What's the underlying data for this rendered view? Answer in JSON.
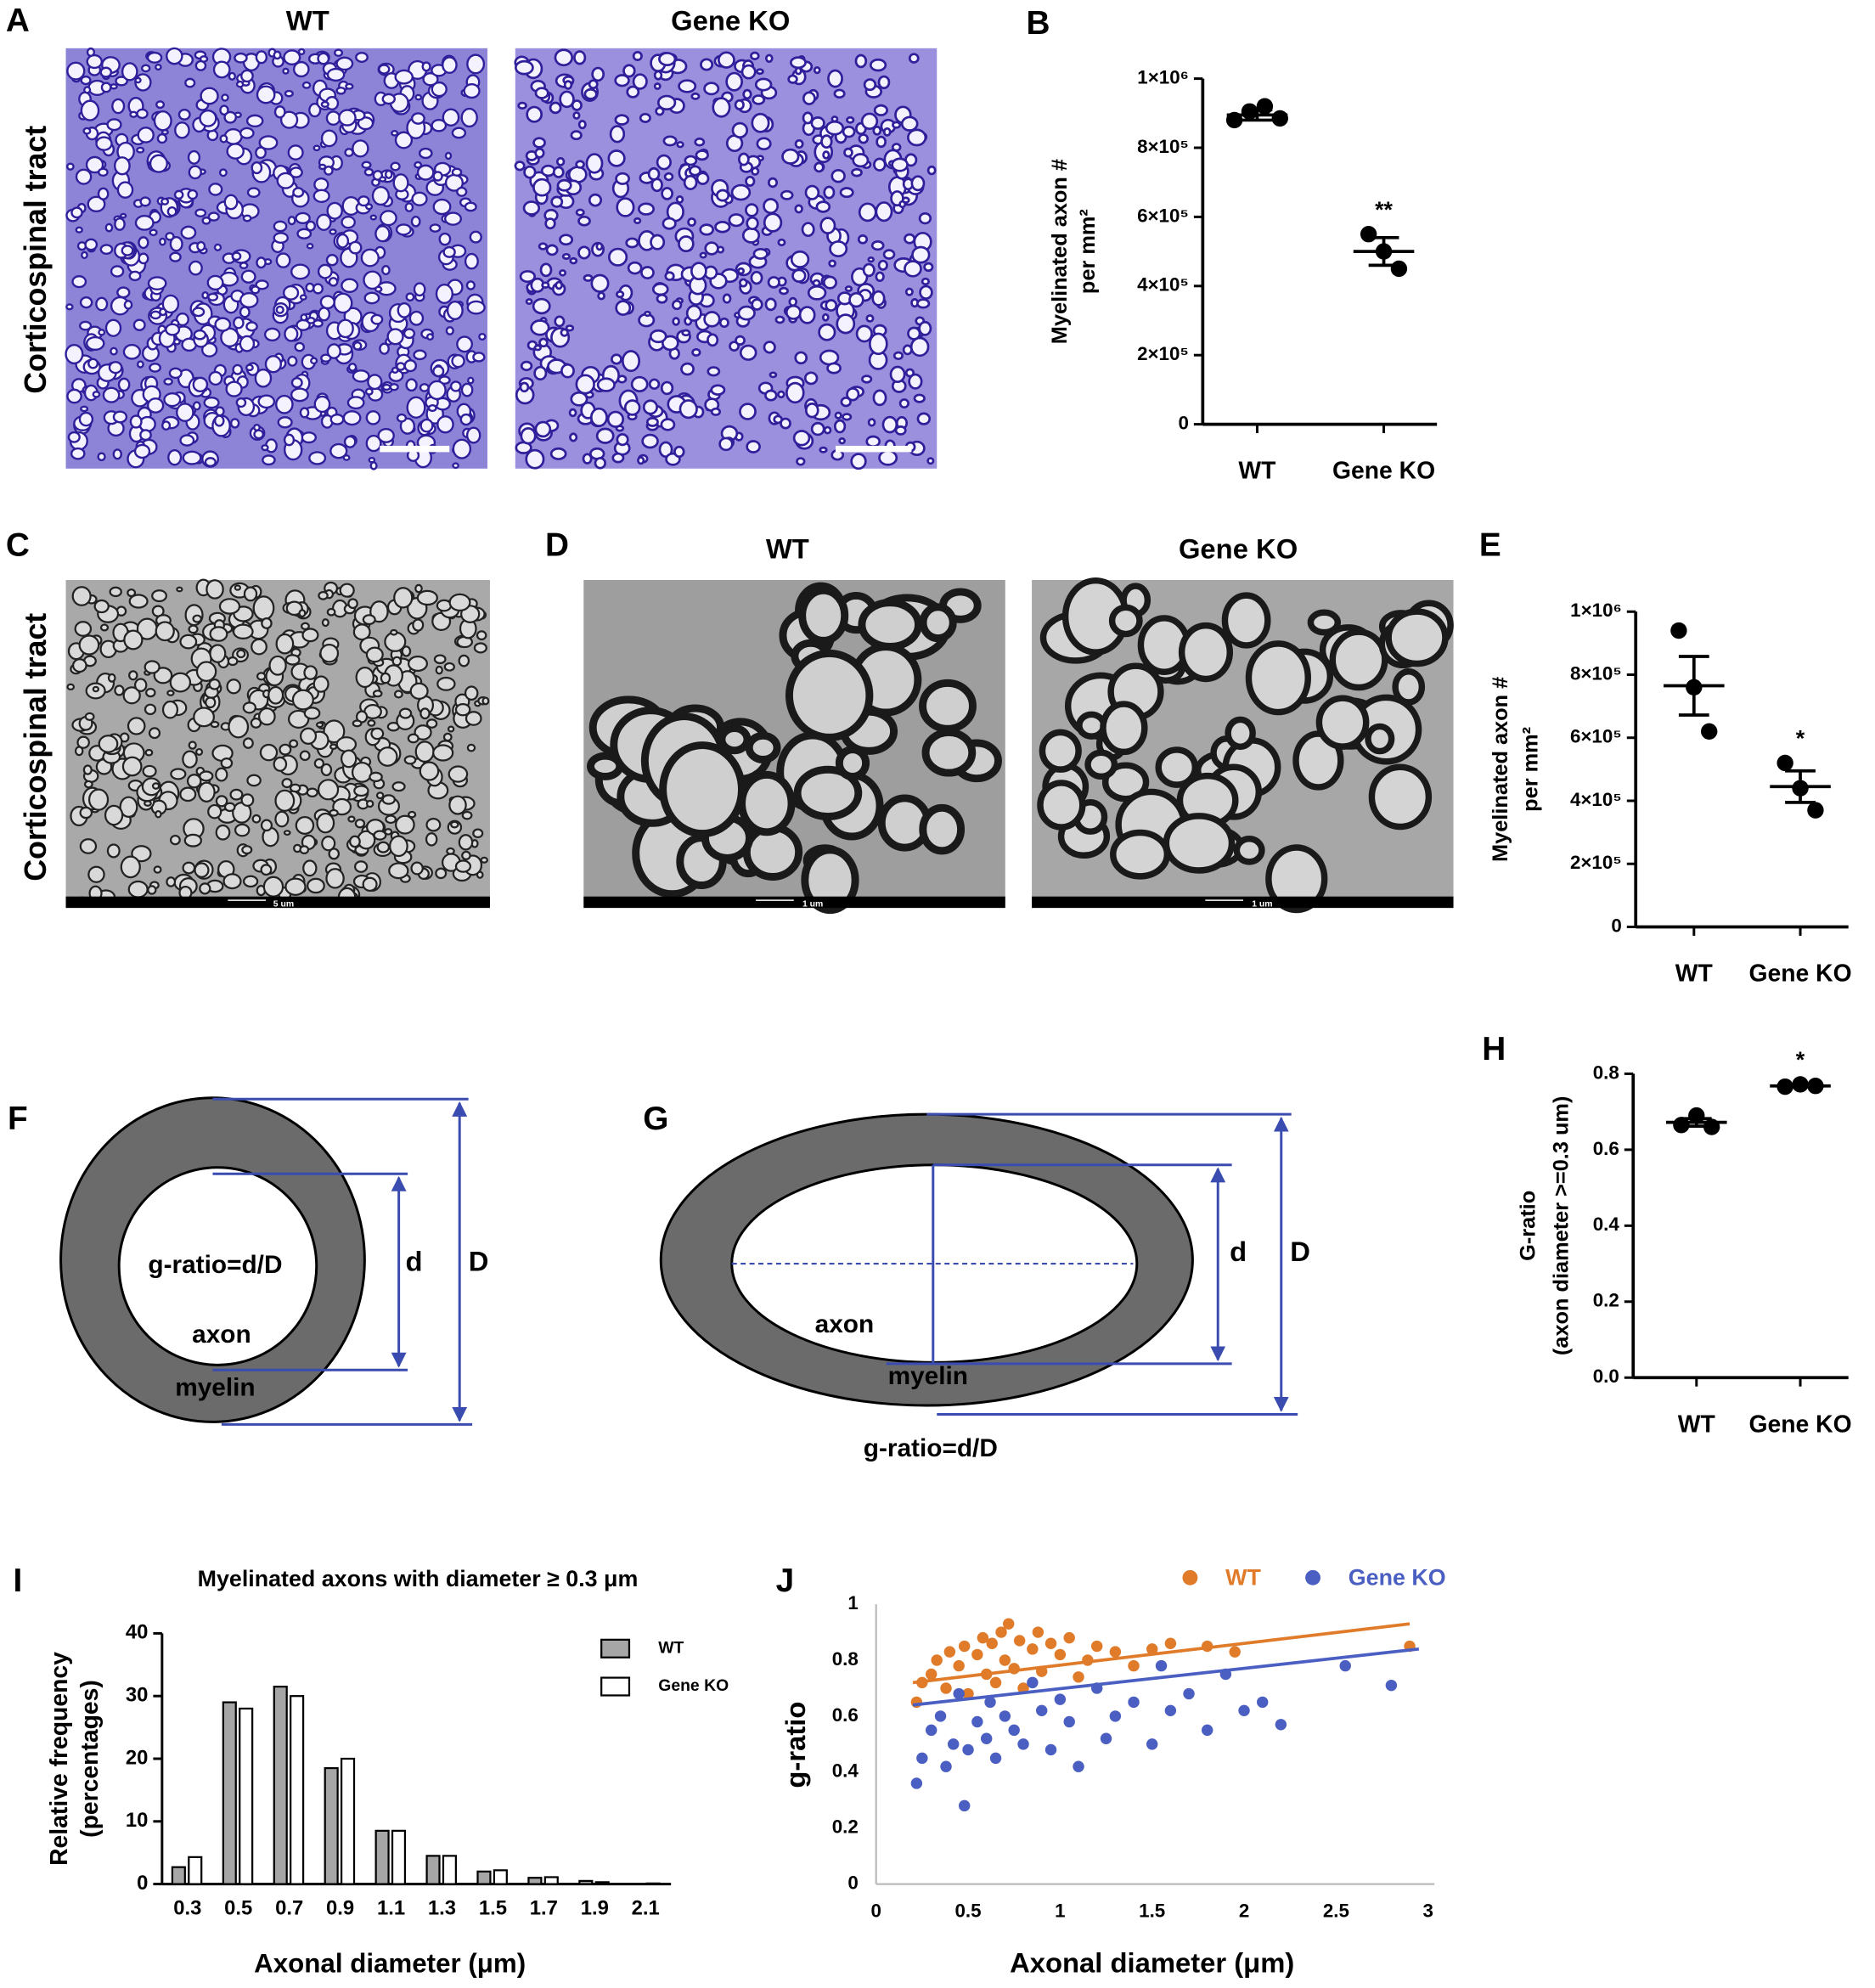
{
  "panel_letters": [
    "A",
    "B",
    "C",
    "D",
    "E",
    "F",
    "G",
    "H",
    "I",
    "J"
  ],
  "images": {
    "A_titles": [
      "WT",
      "Gene KO"
    ],
    "A_side": "Corticospinal tract",
    "C_side": "Corticospinal tract",
    "C_scale": "5 um",
    "D_titles": [
      "WT",
      "Gene KO"
    ],
    "D_scale": [
      "1 um",
      "1 um"
    ]
  },
  "diagrams": {
    "F": {
      "formula": "g-ratio=d/D",
      "axon": "axon",
      "myelin": "myelin",
      "d": "d",
      "D": "D"
    },
    "G": {
      "formula": "g-ratio=d/D",
      "axon": "axon",
      "myelin": "myelin",
      "d": "d",
      "D": "D"
    }
  },
  "chart_data": [
    {
      "type": "strip",
      "ylabel": [
        "Myelinated axon #",
        "per mm²"
      ],
      "ylim": [
        0,
        1000000
      ],
      "yticks": [
        0,
        {
          "value": 200000,
          "label": "2×10⁵"
        },
        {
          "value": 400000,
          "label": "4×10⁵"
        },
        {
          "value": 600000,
          "label": "6×10⁵"
        },
        {
          "value": 800000,
          "label": "8×10⁵"
        },
        {
          "value": 1000000,
          "label": "1×10⁶"
        }
      ],
      "groups": [
        {
          "name": "WT",
          "values": [
            880000,
            905000,
            920000,
            885000
          ],
          "mean": 895000,
          "sem": 15000
        },
        {
          "name": "Gene KO",
          "values": [
            550000,
            500000,
            450000
          ],
          "mean": 500000,
          "sem": 40000,
          "significance": "**"
        }
      ]
    },
    {
      "type": "strip",
      "ylabel": [
        "Myelinated axon #",
        "per mm²"
      ],
      "ylim": [
        0,
        1000000
      ],
      "yticks": [
        0,
        {
          "value": 200000,
          "label": "2×10⁵"
        },
        {
          "value": 400000,
          "label": "4×10⁵"
        },
        {
          "value": 600000,
          "label": "6×10⁵"
        },
        {
          "value": 800000,
          "label": "8×10⁵"
        },
        {
          "value": 1000000,
          "label": "1×10⁶"
        }
      ],
      "groups": [
        {
          "name": "WT",
          "values": [
            940000,
            760000,
            620000
          ],
          "mean": 765000,
          "sem": 93000
        },
        {
          "name": "Gene KO",
          "values": [
            520000,
            440000,
            370000
          ],
          "mean": 445000,
          "sem": 50000,
          "significance": "*"
        }
      ]
    },
    {
      "type": "strip",
      "ylabel": [
        "G-ratio",
        "(axon diameter >=0.3 um)"
      ],
      "ylim": [
        0,
        0.8
      ],
      "yticks": [
        {
          "value": 0,
          "label": "0.0"
        },
        0.2,
        0.4,
        0.6,
        0.8
      ],
      "groups": [
        {
          "name": "WT",
          "values": [
            0.665,
            0.69,
            0.66
          ],
          "mean": 0.672,
          "sem": 0.01
        },
        {
          "name": "Gene KO",
          "values": [
            0.766,
            0.772,
            0.768
          ],
          "mean": 0.768,
          "sem": 0.002,
          "significance": "*"
        }
      ]
    },
    {
      "type": "bar",
      "title": "Myelinated axons with diameter ≥  0.3 μm",
      "xlabel": "Axonal diameter (μm)",
      "ylabel": [
        "Relative frequency",
        "(percentages)"
      ],
      "categories": [
        "0.3",
        "0.5",
        "0.7",
        "0.9",
        "1.1",
        "1.3",
        "1.5",
        "1.7",
        "1.9",
        "2.1"
      ],
      "ylim": [
        0,
        40
      ],
      "yticks": [
        0,
        10,
        20,
        30,
        40
      ],
      "series": [
        {
          "name": "WT",
          "color": "#a6a6a6",
          "values": [
            2.7,
            29,
            31.5,
            18.5,
            8.5,
            4.5,
            2,
            1,
            0.5,
            0
          ]
        },
        {
          "name": "Gene KO",
          "color": "#ffffff",
          "values": [
            4.3,
            28,
            30,
            20,
            8.5,
            4.5,
            2.2,
            1.1,
            0.3,
            0.1
          ]
        }
      ]
    },
    {
      "type": "scatter",
      "xlabel": "Axonal diameter (μm)",
      "ylabel": "g-ratio",
      "xlim": [
        0,
        3
      ],
      "xticks": [
        0,
        0.5,
        1,
        1.5,
        2,
        2.5,
        3
      ],
      "ylim": [
        0,
        1
      ],
      "yticks": [
        0,
        0.2,
        0.4,
        0.6,
        0.8,
        1
      ],
      "series": [
        {
          "name": "WT",
          "color": "#e07b2a",
          "x": [
            0.22,
            0.25,
            0.3,
            0.33,
            0.38,
            0.4,
            0.45,
            0.48,
            0.5,
            0.55,
            0.58,
            0.6,
            0.63,
            0.65,
            0.68,
            0.7,
            0.72,
            0.75,
            0.78,
            0.8,
            0.85,
            0.88,
            0.9,
            0.95,
            1.0,
            1.05,
            1.1,
            1.15,
            1.2,
            1.3,
            1.4,
            1.5,
            1.6,
            1.8,
            1.95,
            2.9
          ],
          "y": [
            0.65,
            0.72,
            0.75,
            0.8,
            0.7,
            0.83,
            0.78,
            0.85,
            0.68,
            0.82,
            0.88,
            0.75,
            0.86,
            0.72,
            0.9,
            0.8,
            0.93,
            0.77,
            0.87,
            0.7,
            0.84,
            0.9,
            0.76,
            0.86,
            0.82,
            0.88,
            0.74,
            0.8,
            0.85,
            0.83,
            0.78,
            0.84,
            0.86,
            0.85,
            0.83,
            0.85
          ],
          "trend": {
            "x": [
              0.2,
              2.9
            ],
            "y": [
              0.72,
              0.93
            ]
          }
        },
        {
          "name": "Gene KO",
          "color": "#4a5fc1",
          "x": [
            0.22,
            0.25,
            0.3,
            0.35,
            0.38,
            0.42,
            0.45,
            0.48,
            0.5,
            0.55,
            0.6,
            0.62,
            0.65,
            0.7,
            0.75,
            0.8,
            0.85,
            0.9,
            0.95,
            1.0,
            1.05,
            1.1,
            1.2,
            1.25,
            1.3,
            1.4,
            1.5,
            1.55,
            1.6,
            1.7,
            1.8,
            1.9,
            2.0,
            2.1,
            2.2,
            2.55,
            2.8
          ],
          "y": [
            0.36,
            0.45,
            0.55,
            0.6,
            0.42,
            0.5,
            0.68,
            0.28,
            0.48,
            0.58,
            0.52,
            0.65,
            0.45,
            0.6,
            0.55,
            0.5,
            0.72,
            0.62,
            0.48,
            0.66,
            0.58,
            0.42,
            0.7,
            0.52,
            0.6,
            0.65,
            0.5,
            0.78,
            0.62,
            0.68,
            0.55,
            0.75,
            0.62,
            0.65,
            0.57,
            0.78,
            0.71
          ],
          "trend": {
            "x": [
              0.2,
              2.95
            ],
            "y": [
              0.64,
              0.84
            ]
          }
        }
      ]
    }
  ]
}
